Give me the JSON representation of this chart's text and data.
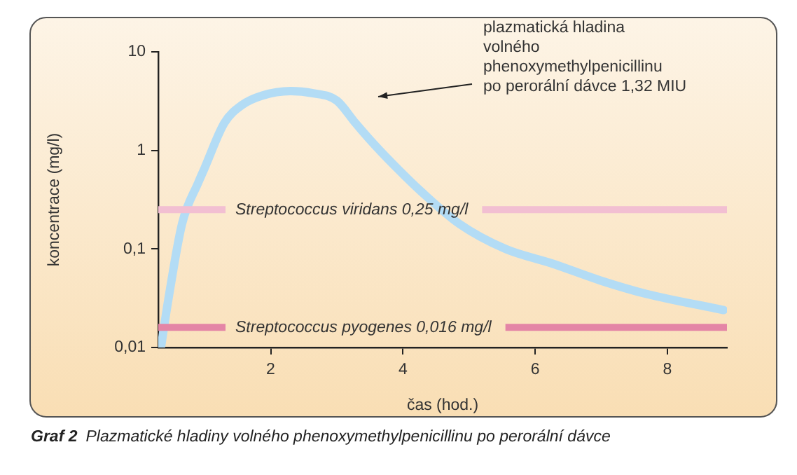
{
  "chart_data": {
    "type": "line",
    "title": "Graf 2",
    "subtitle": "Plazmatické hladiny volného phenoxymethylpenicillinu po perorální dávce",
    "xlabel": "čas (hod.)",
    "ylabel": "koncentrace (mg/l)",
    "x": [
      0.34,
      0.45,
      0.66,
      0.91,
      1.0,
      1.3,
      1.57,
      1.87,
      2.3,
      2.64,
      3.0,
      3.28,
      3.57,
      3.91,
      4.28,
      4.85,
      5.55,
      6.26,
      6.98,
      7.68,
      8.85
    ],
    "series": [
      {
        "color": "#b3dcf5",
        "values": [
          0.01,
          0.03,
          0.18,
          0.48,
          0.66,
          1.9,
          2.9,
          3.6,
          4.0,
          3.8,
          3.2,
          1.9,
          1.14,
          0.66,
          0.38,
          0.18,
          0.1,
          0.071,
          0.048,
          0.035,
          0.024
        ]
      }
    ],
    "log": "y",
    "xlim": [
      0.3,
      8.9
    ],
    "xticks": [
      2,
      4,
      6,
      8
    ],
    "ylim": [
      0.01,
      10
    ],
    "yticks": [
      {
        "value": 0.01,
        "label": "0,01"
      },
      {
        "value": 0.1,
        "label": "0,1"
      },
      1,
      10
    ],
    "ref_lines": [
      {
        "axis": "y",
        "value": 0.25,
        "label": "Streptococcus viridans 0,25 mg/l",
        "color": "#f2bfd2"
      },
      {
        "axis": "y",
        "value": 0.016,
        "label": "Streptococcus pyogenes 0,016 mg/l",
        "color": "#e485a6"
      }
    ],
    "annotations": [
      "plazmatická hladina\nvolného\nphenoxymethylpenicillinu\npo perorální dávce 1,32 MIU"
    ],
    "legend": false,
    "marker": "none",
    "line_style": "solid"
  }
}
